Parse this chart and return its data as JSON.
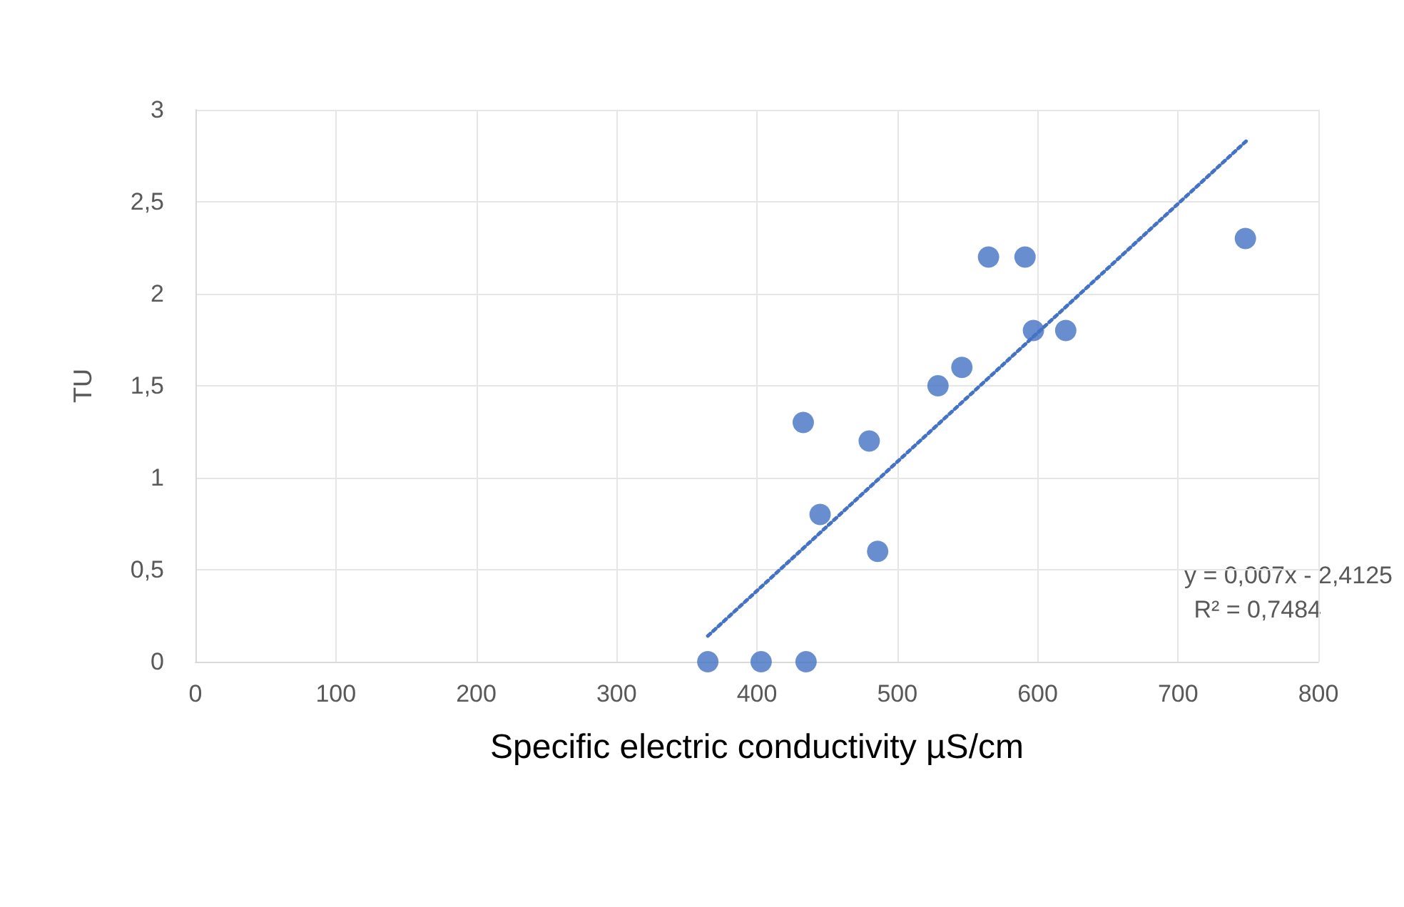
{
  "chart_data": {
    "type": "scatter",
    "xlabel": "Specific electric conductivity µS/cm",
    "ylabel": "TU",
    "series": [
      {
        "color": "#4472c4",
        "marker": "circle",
        "x": [
          365,
          403,
          435,
          433,
          480,
          445,
          486,
          529,
          546,
          565,
          591,
          597,
          620,
          748
        ],
        "values": [
          0,
          0,
          0,
          1.3,
          1.2,
          0.8,
          0.6,
          1.5,
          1.6,
          2.2,
          2.2,
          1.8,
          1.8,
          2.3
        ]
      },
      {
        "type": "line",
        "color": "#4472c4",
        "marker": "none",
        "line_style": "dotted",
        "x": [
          365,
          750
        ],
        "values": [
          0.14,
          2.84
        ]
      }
    ],
    "xlim": [
      0,
      800
    ],
    "xticks": [
      0,
      100,
      200,
      300,
      400,
      500,
      600,
      700,
      800
    ],
    "ylim": [
      0,
      3
    ],
    "yticks": [
      0,
      {
        "value": 0.5,
        "label": "0,5"
      },
      1,
      {
        "value": 1.5,
        "label": "1,5"
      },
      2,
      {
        "value": 2.5,
        "label": "2,5"
      },
      3
    ],
    "grid": true,
    "annotations": [
      "y = 0,007x - 2,4125",
      "R² = 0,7484"
    ]
  }
}
